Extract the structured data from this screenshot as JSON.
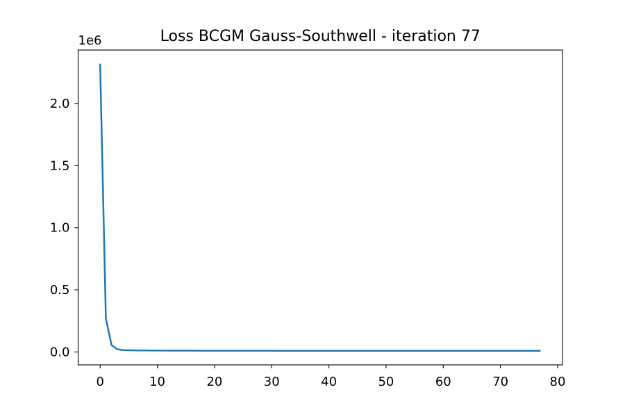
{
  "chart_data": {
    "type": "line",
    "title": "Loss BCGM Gauss-Southwell - iteration 77",
    "xlabel": "",
    "ylabel": "",
    "y_offset_label": "1e6",
    "xlim": [
      -3.85,
      80.85
    ],
    "ylim": [
      -104000,
      2430000
    ],
    "x_ticks": [
      0,
      10,
      20,
      30,
      40,
      50,
      60,
      70,
      80
    ],
    "x_tick_labels": [
      "0",
      "10",
      "20",
      "30",
      "40",
      "50",
      "60",
      "70",
      "80"
    ],
    "y_ticks": [
      0,
      500000,
      1000000,
      1500000,
      2000000
    ],
    "y_tick_labels": [
      "0.0",
      "0.5",
      "1.0",
      "1.5",
      "2.0"
    ],
    "grid": false,
    "legend": "none",
    "series": [
      {
        "color": "#1f77b4",
        "x": [
          0,
          1,
          2,
          3,
          4,
          5,
          6,
          7,
          8,
          9,
          10,
          11,
          12,
          13,
          14,
          15,
          16,
          17,
          18,
          19,
          20,
          21,
          22,
          23,
          24,
          25,
          26,
          27,
          28,
          29,
          30,
          31,
          32,
          33,
          34,
          35,
          36,
          37,
          38,
          39,
          40,
          41,
          42,
          43,
          44,
          45,
          46,
          47,
          48,
          49,
          50,
          51,
          52,
          53,
          54,
          55,
          56,
          57,
          58,
          59,
          60,
          61,
          62,
          63,
          64,
          65,
          66,
          67,
          68,
          69,
          70,
          71,
          72,
          73,
          74,
          75,
          76,
          77
        ],
        "y": [
          2320000,
          270000,
          55000,
          22000,
          15000,
          13500,
          12800,
          12300,
          11900,
          11600,
          11300,
          11100,
          10900,
          10800,
          10700,
          10600,
          10500,
          10400,
          10300,
          10200,
          10100,
          10050,
          10000,
          9950,
          9900,
          9850,
          9800,
          9760,
          9720,
          9690,
          9660,
          9630,
          9600,
          9570,
          9540,
          9510,
          9480,
          9460,
          9440,
          9420,
          9400,
          9380,
          9360,
          9340,
          9320,
          9300,
          9280,
          9260,
          9240,
          9220,
          9200,
          9190,
          9180,
          9170,
          9160,
          9150,
          9140,
          9130,
          9120,
          9110,
          9100,
          9090,
          9080,
          9070,
          9060,
          9050,
          9040,
          9030,
          9020,
          9010,
          9000,
          8995,
          8990,
          8985,
          8980,
          8975,
          8970,
          8965
        ]
      }
    ]
  }
}
